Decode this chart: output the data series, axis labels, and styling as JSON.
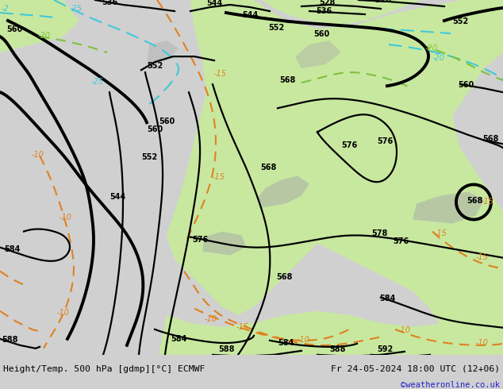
{
  "title_left": "Height/Temp. 500 hPa [gdmp][°C] ECMWF",
  "title_right": "Fr 24-05-2024 18:00 UTC (12+06)",
  "watermark": "©weatheronline.co.uk",
  "bg_color": "#e8e8e8",
  "land_color": "#c8e8a0",
  "gray_color": "#a8a8a8",
  "watermark_color": "#2222cc",
  "bottom_bar_color": "#d0d0d0",
  "geo_color": "#000000",
  "temp_orange": "#e08020",
  "temp_cyan": "#40c8d8",
  "temp_green": "#80c040"
}
